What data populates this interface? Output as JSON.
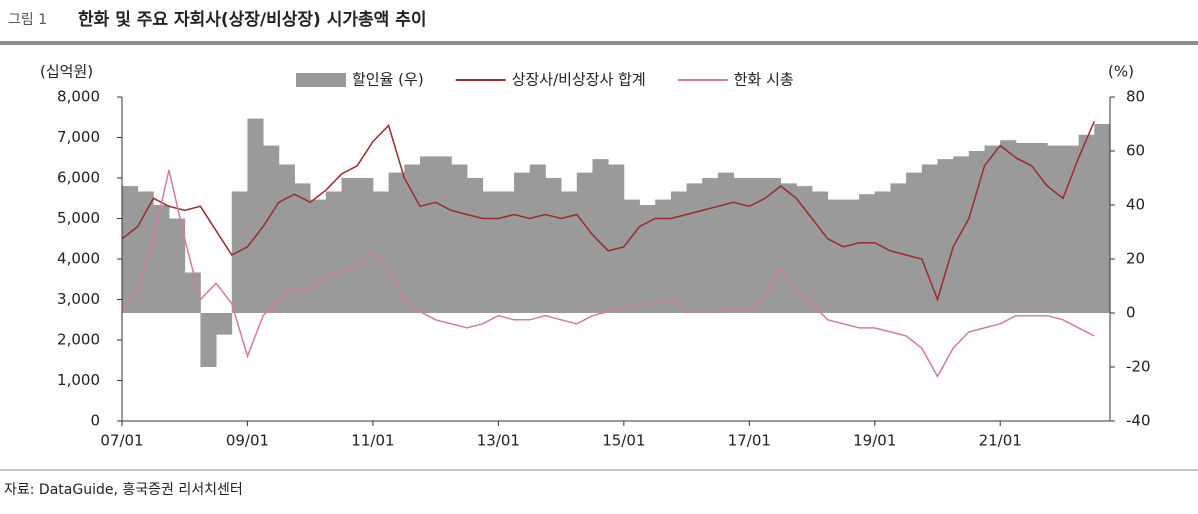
{
  "chart_data": {
    "type": "combo",
    "figure_label": "그림 1",
    "title": "한화 및 주요 자회사(상장/비상장) 시가총액 추이",
    "y_label": "(십억원)",
    "y2_label": "(%)",
    "source": "자료: DataGuide, 흥국증권 리서치센터",
    "x": [
      "07/01",
      "07/04",
      "07/07",
      "07/10",
      "08/01",
      "08/04",
      "08/07",
      "08/10",
      "09/01",
      "09/04",
      "09/07",
      "09/10",
      "10/01",
      "10/04",
      "10/07",
      "10/10",
      "11/01",
      "11/04",
      "11/07",
      "11/10",
      "12/01",
      "12/04",
      "12/07",
      "12/10",
      "13/01",
      "13/04",
      "13/07",
      "13/10",
      "14/01",
      "14/04",
      "14/07",
      "14/10",
      "15/01",
      "15/04",
      "15/07",
      "15/10",
      "16/01",
      "16/04",
      "16/07",
      "16/10",
      "17/01",
      "17/04",
      "17/07",
      "17/10",
      "18/01",
      "18/04",
      "18/07",
      "18/10",
      "19/01",
      "19/04",
      "19/07",
      "19/10",
      "20/01",
      "20/04",
      "20/07",
      "20/10",
      "21/01",
      "21/04",
      "21/07",
      "21/10",
      "22/01",
      "22/04",
      "22/07"
    ],
    "xticks": [
      "07/01",
      "09/01",
      "11/01",
      "13/01",
      "15/01",
      "17/01",
      "19/01",
      "21/01"
    ],
    "ylim": [
      0,
      8000
    ],
    "yticks": [
      0,
      {
        "value": 1000,
        "label": "1,000"
      },
      {
        "value": 2000,
        "label": "2,000"
      },
      {
        "value": 3000,
        "label": "3,000"
      },
      {
        "value": 4000,
        "label": "4,000"
      },
      {
        "value": 5000,
        "label": "5,000"
      },
      {
        "value": 6000,
        "label": "6,000"
      },
      {
        "value": 7000,
        "label": "7,000"
      },
      {
        "value": 8000,
        "label": "8,000"
      }
    ],
    "y2lim": [
      -40,
      80
    ],
    "y2ticks": [
      -40,
      -20,
      0,
      20,
      40,
      60,
      80
    ],
    "series": [
      {
        "name": "할인율 (우)",
        "kind": "bar",
        "axis": "y2",
        "color": "#9a9a9a",
        "values": [
          47,
          45,
          40,
          35,
          15,
          -20,
          -8,
          45,
          72,
          62,
          55,
          48,
          42,
          45,
          50,
          50,
          45,
          52,
          55,
          58,
          58,
          55,
          50,
          45,
          45,
          52,
          55,
          50,
          45,
          52,
          57,
          55,
          42,
          40,
          42,
          45,
          48,
          50,
          52,
          50,
          50,
          50,
          48,
          47,
          45,
          42,
          42,
          44,
          45,
          48,
          52,
          55,
          57,
          58,
          60,
          62,
          64,
          63,
          63,
          62,
          62,
          66,
          70
        ]
      },
      {
        "name": "상장사/비상장사 합계",
        "kind": "line",
        "color": "#9b2b2b",
        "values": [
          4500,
          4800,
          5500,
          5300,
          5200,
          5300,
          4700,
          4100,
          4300,
          4800,
          5400,
          5600,
          5400,
          5700,
          6100,
          6300,
          6900,
          7300,
          6000,
          5300,
          5400,
          5200,
          5100,
          5000,
          5000,
          5100,
          5000,
          5100,
          5000,
          5100,
          4600,
          4200,
          4300,
          4800,
          5000,
          5000,
          5100,
          5200,
          5300,
          5400,
          5300,
          5500,
          5800,
          5500,
          5000,
          4500,
          4300,
          4400,
          4400,
          4200,
          4100,
          4000,
          3000,
          4300,
          5000,
          6300,
          6800,
          6500,
          6300,
          5800,
          5500,
          6500,
          7400
        ]
      },
      {
        "name": "한화 시총",
        "kind": "line",
        "color": "#d47aa6",
        "values": [
          2700,
          3200,
          4500,
          6200,
          4500,
          3000,
          3400,
          2900,
          1600,
          2600,
          3000,
          3300,
          3200,
          3600,
          3700,
          3800,
          4200,
          3800,
          3000,
          2700,
          2500,
          2400,
          2300,
          2400,
          2600,
          2500,
          2500,
          2600,
          2500,
          2400,
          2600,
          2700,
          2800,
          2900,
          2900,
          3000,
          2700,
          2700,
          2700,
          2800,
          2700,
          3100,
          3800,
          3200,
          2900,
          2500,
          2400,
          2300,
          2300,
          2200,
          2100,
          1800,
          1100,
          1800,
          2200,
          2300,
          2400,
          2600,
          2600,
          2600,
          2500,
          2300,
          2100
        ]
      }
    ]
  }
}
